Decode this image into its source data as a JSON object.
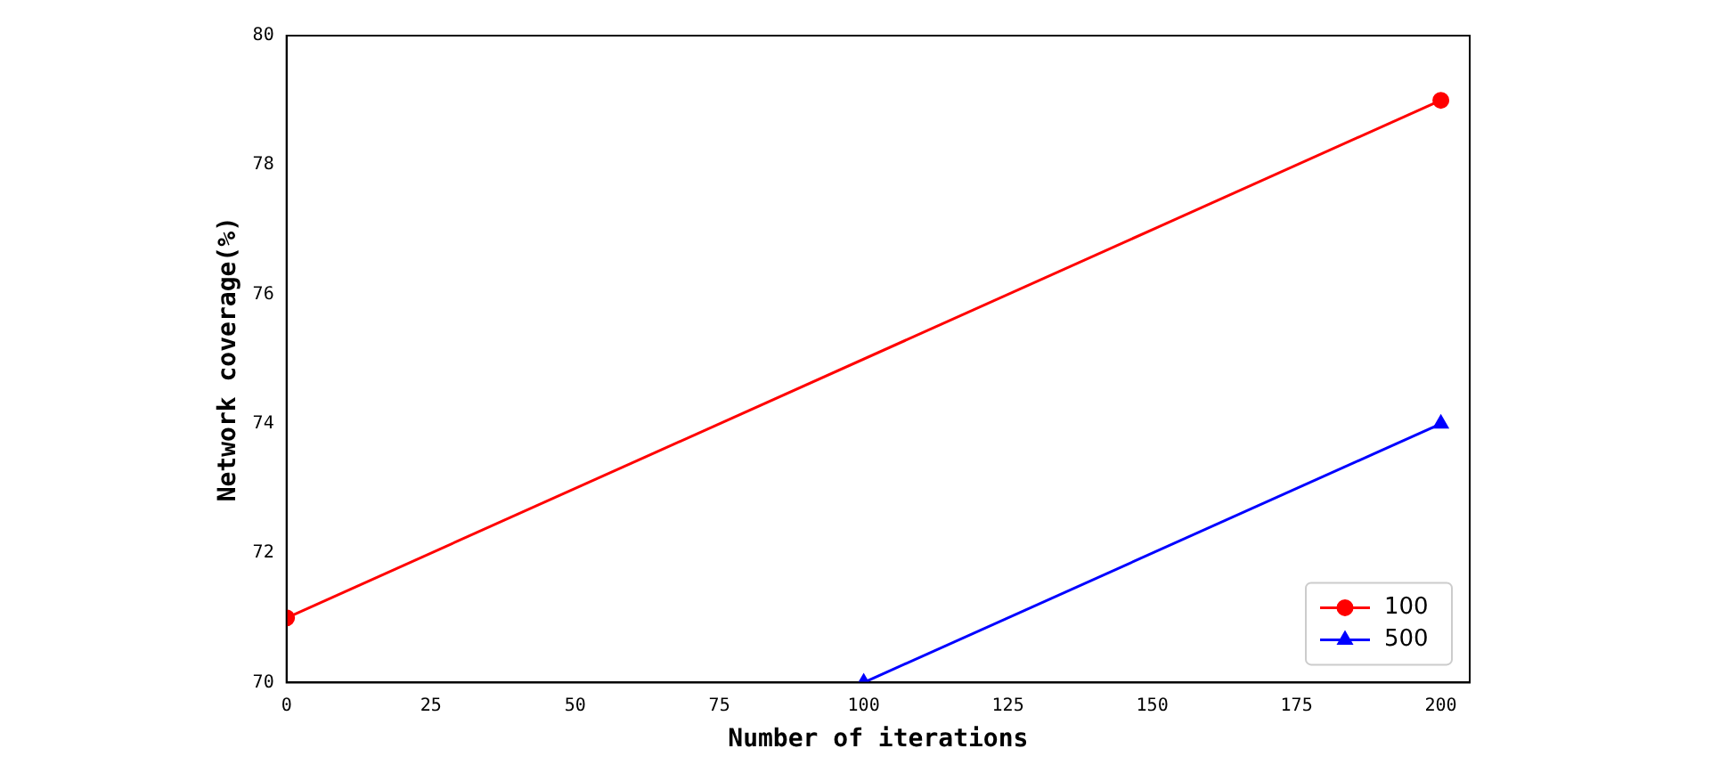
{
  "chart_data": {
    "type": "line",
    "xlabel": "Number of iterations",
    "ylabel": "Network coverage(%)",
    "xlim": [
      0,
      205
    ],
    "xticks": [
      0,
      25,
      50,
      75,
      100,
      125,
      150,
      175,
      200
    ],
    "ylim": [
      70,
      80
    ],
    "yticks": [
      70,
      72,
      74,
      76,
      78,
      80
    ],
    "series": [
      {
        "name": "100",
        "color": "#ff0000",
        "marker": "circle",
        "x": [
          0,
          200
        ],
        "values": [
          71,
          79
        ]
      },
      {
        "name": "500",
        "color": "#0000ff",
        "marker": "triangle",
        "x": [
          100,
          200
        ],
        "values": [
          70,
          74
        ]
      }
    ],
    "legend": "bottom right",
    "grid": false,
    "line_style": "solid"
  }
}
